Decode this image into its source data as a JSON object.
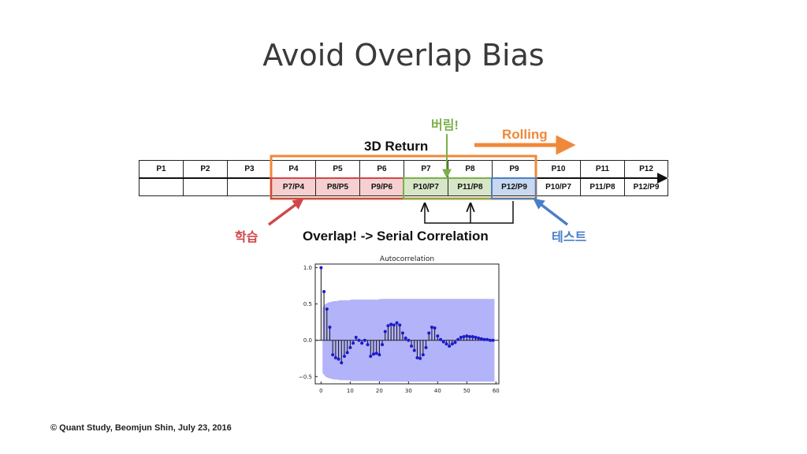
{
  "title": "Avoid Overlap Bias",
  "labels": {
    "return": "3D Return",
    "rolling": "Rolling",
    "beorim": "버림!",
    "train": "학습",
    "test": "테스트",
    "overlap": "Overlap! -> Serial Correlation"
  },
  "footer": "© Quant Study, Beomjun Shin, July 23, 2016",
  "table": {
    "row1": [
      "P1",
      "P2",
      "P3",
      "P4",
      "P5",
      "P6",
      "P7",
      "P8",
      "P9",
      "P10",
      "P11",
      "P12"
    ],
    "row2": [
      "",
      "",
      "",
      "P7/P4",
      "P8/P5",
      "P9/P6",
      "P10/P7",
      "P11/P8",
      "P12/P9",
      "P10/P7",
      "P11/P8",
      "P12/P9"
    ]
  },
  "colors": {
    "train": "#d0474a",
    "train_fill": "#f6d0d0",
    "discard": "#7ab04a",
    "discard_fill": "#d6e6c6",
    "test": "#4a7fc8",
    "test_fill": "#c8d8f0",
    "rolling": "#f0883a"
  },
  "chart_data": {
    "type": "scatter",
    "title": "Autocorrelation",
    "xlim": [
      -2,
      61
    ],
    "ylim": [
      -0.6,
      1.05
    ],
    "xticks": [
      0,
      10,
      20,
      30,
      40,
      50,
      60
    ],
    "yticks": [
      -0.5,
      0.0,
      0.5,
      1.0
    ],
    "ytick_labels": [
      "−0.5",
      "0.0",
      "0.5",
      "1.0"
    ],
    "lags": [
      0,
      1,
      2,
      3,
      4,
      5,
      6,
      7,
      8,
      9,
      10,
      11,
      12,
      13,
      14,
      15,
      16,
      17,
      18,
      19,
      20,
      21,
      22,
      23,
      24,
      25,
      26,
      27,
      28,
      29,
      30,
      31,
      32,
      33,
      34,
      35,
      36,
      37,
      38,
      39,
      40,
      41,
      42,
      43,
      44,
      45,
      46,
      47,
      48,
      49,
      50,
      51,
      52,
      53,
      54,
      55,
      56,
      57,
      58,
      59
    ],
    "values": [
      1.0,
      0.67,
      0.43,
      0.18,
      -0.2,
      -0.24,
      -0.26,
      -0.31,
      -0.22,
      -0.17,
      -0.1,
      -0.04,
      0.04,
      0.0,
      -0.04,
      0.0,
      -0.06,
      -0.22,
      -0.19,
      -0.18,
      -0.2,
      -0.06,
      0.12,
      0.2,
      0.22,
      0.21,
      0.24,
      0.21,
      0.1,
      0.03,
      0.0,
      -0.08,
      -0.14,
      -0.24,
      -0.25,
      -0.2,
      -0.1,
      0.1,
      0.18,
      0.17,
      0.06,
      0.01,
      -0.02,
      -0.05,
      -0.08,
      -0.05,
      -0.03,
      0.01,
      0.04,
      0.05,
      0.06,
      0.05,
      0.05,
      0.04,
      0.03,
      0.02,
      0.01,
      0.01,
      0.0,
      0.0
    ],
    "confidence_band": [
      0.45,
      0.5,
      0.52,
      0.53,
      0.54,
      0.54,
      0.55,
      0.55,
      0.55,
      0.55,
      0.56,
      0.56,
      0.56,
      0.56,
      0.56,
      0.56,
      0.56,
      0.56,
      0.56,
      0.56,
      0.57,
      0.57,
      0.57,
      0.57,
      0.57,
      0.57,
      0.57,
      0.57,
      0.57,
      0.57,
      0.57,
      0.57,
      0.57,
      0.57,
      0.57,
      0.57,
      0.57,
      0.57,
      0.57,
      0.57,
      0.57,
      0.57,
      0.57,
      0.57,
      0.57,
      0.57,
      0.57,
      0.57,
      0.57,
      0.57,
      0.57,
      0.57,
      0.57,
      0.57,
      0.57,
      0.57,
      0.57,
      0.57,
      0.57,
      0.57
    ]
  }
}
